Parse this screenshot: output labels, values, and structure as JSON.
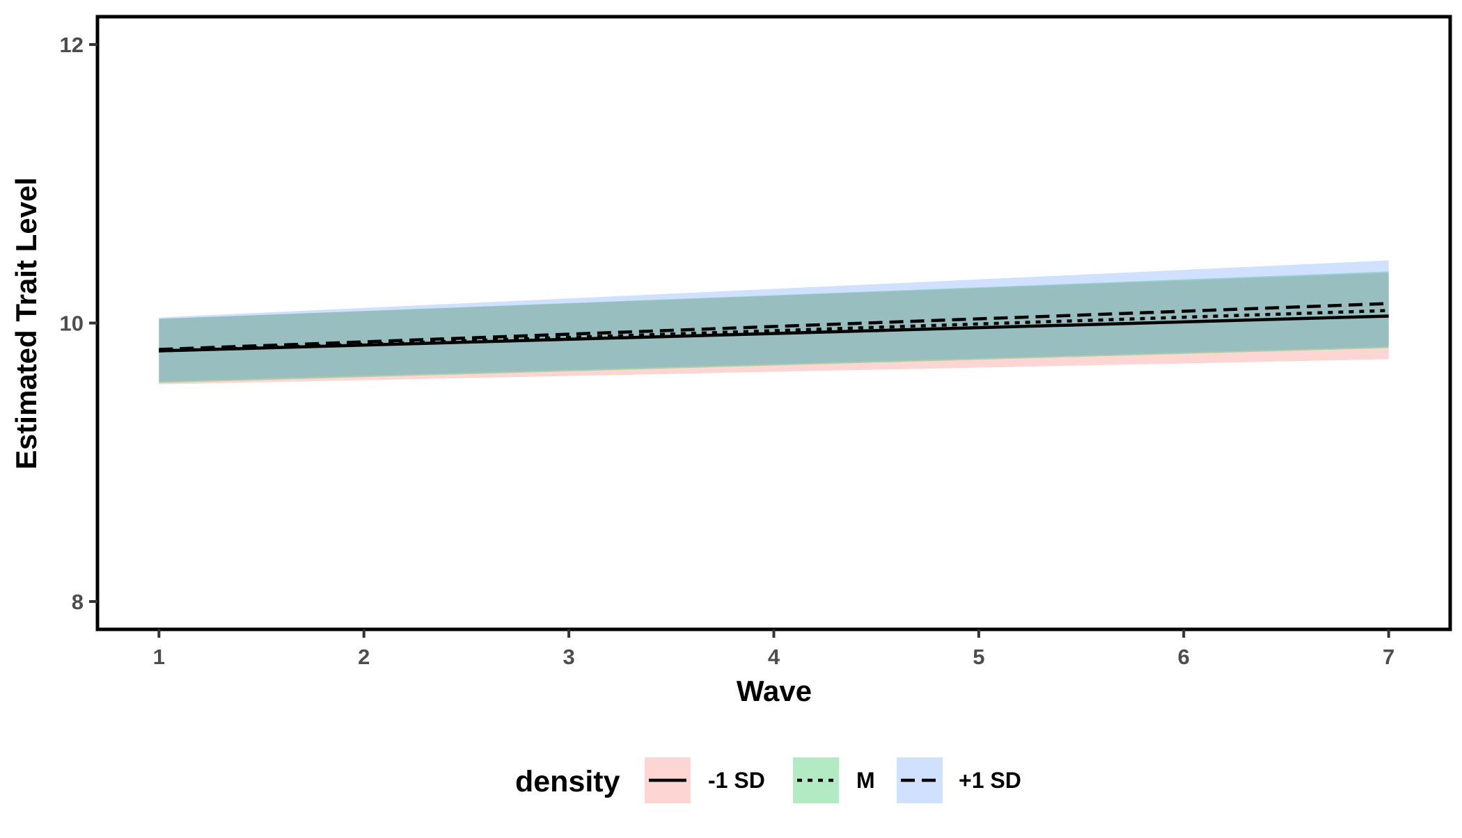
{
  "chart_data": {
    "type": "line",
    "title": "",
    "xlabel": "Wave",
    "ylabel": "Estimated Trait Level",
    "xlim": [
      0.7,
      7.3
    ],
    "ylim": [
      7.8,
      12.2
    ],
    "x_ticks": [
      1,
      2,
      3,
      4,
      5,
      6,
      7
    ],
    "x_tick_labels": [
      "1",
      "2",
      "3",
      "4",
      "5",
      "6",
      "7"
    ],
    "y_ticks": [
      8,
      10,
      12
    ],
    "y_tick_labels": [
      "8",
      "10",
      "12"
    ],
    "grid": false,
    "legend": {
      "title": "density",
      "placement": "bottom"
    },
    "x": [
      1,
      7
    ],
    "series": [
      {
        "name": "-1 SD",
        "linetype": "solid",
        "band_color": "#f8766d",
        "values": [
          9.8,
          10.05
        ],
        "lower": [
          9.56,
          9.74
        ],
        "upper": [
          10.03,
          10.36
        ]
      },
      {
        "name": "M",
        "linetype": "dotted",
        "band_color": "#00ba38",
        "values": [
          9.8,
          10.09
        ],
        "lower": [
          9.57,
          9.82
        ],
        "upper": [
          10.03,
          10.37
        ]
      },
      {
        "name": "+1 SD",
        "linetype": "dashed",
        "band_color": "#619cff",
        "values": [
          9.81,
          10.14
        ],
        "lower": [
          9.58,
          9.83
        ],
        "upper": [
          10.04,
          10.45
        ]
      }
    ]
  }
}
